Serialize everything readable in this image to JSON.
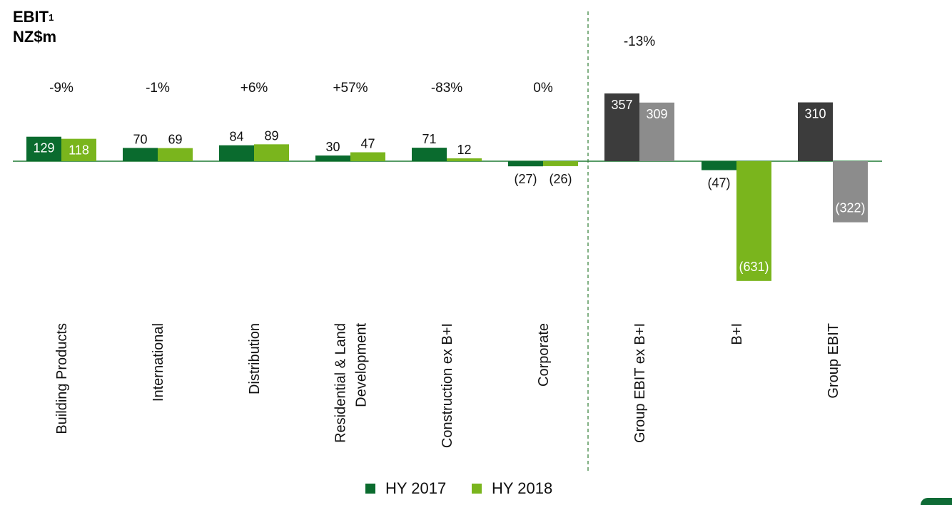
{
  "title": {
    "line1": "EBIT",
    "sup": "1",
    "line2": "NZ$m"
  },
  "colors": {
    "hy2017": "#0a6b2e",
    "hy2018": "#7ab51d",
    "group2017": "#3c3c3c",
    "group2018": "#8c8c8c",
    "divider": "#2e7d32"
  },
  "chart_data": {
    "type": "bar",
    "title": "EBIT¹ NZ$m",
    "categories": [
      "Building Products",
      "International",
      "Distribution",
      "Residential & Land Development",
      "Construction ex B+I",
      "Corporate",
      "Group EBIT ex B+I",
      "B+I",
      "Group EBIT"
    ],
    "category_labels": [
      [
        "Building Products"
      ],
      [
        "International"
      ],
      [
        "Distribution"
      ],
      [
        "Residential & Land",
        "Development"
      ],
      [
        "Construction ex B+I"
      ],
      [
        "Corporate"
      ],
      [
        "Group EBIT ex B+I"
      ],
      [
        "B+I"
      ],
      [
        "Group EBIT"
      ]
    ],
    "series": [
      {
        "name": "HY 2017",
        "values": [
          129,
          70,
          84,
          30,
          71,
          -27,
          357,
          -47,
          310
        ],
        "labels": [
          "129",
          "70",
          "84",
          "30",
          "71",
          "(27)",
          "357",
          "(47)",
          "310"
        ]
      },
      {
        "name": "HY 2018",
        "values": [
          118,
          69,
          89,
          47,
          12,
          -26,
          309,
          -631,
          -322
        ],
        "labels": [
          "118",
          "69",
          "89",
          "47",
          "12",
          "(26)",
          "309",
          "(631)",
          "(322)"
        ]
      }
    ],
    "change_labels": [
      "-9%",
      "-1%",
      "+6%",
      "+57%",
      "-83%",
      "0%",
      "-13%",
      "",
      ""
    ],
    "legend": [
      "HY 2017",
      "HY 2018"
    ],
    "legend_position": "bottom",
    "grid": false
  }
}
